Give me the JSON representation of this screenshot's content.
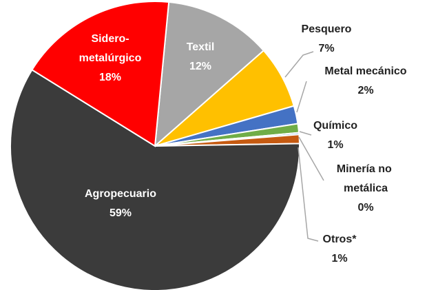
{
  "chart_data": {
    "type": "pie",
    "categories": [
      "Textil",
      "Pesquero",
      "Metal mecánico",
      "Químico",
      "Minería no metálica",
      "Otros*",
      "Agropecuario",
      "Sidero-metalúrgico"
    ],
    "values": [
      12.0,
      7.0,
      2.0,
      1.0,
      0.2,
      1.0,
      59.1,
      17.7
    ],
    "value_labels": [
      "12%",
      "7%",
      "2%",
      "1%",
      "0%",
      "1%",
      "59%",
      "18%"
    ],
    "colors": [
      "#a6a6a6",
      "#ffc000",
      "#4472c4",
      "#70ad47",
      "#5b9bd5",
      "#c55a11",
      "#3b3b3b",
      "#ff0000"
    ]
  }
}
